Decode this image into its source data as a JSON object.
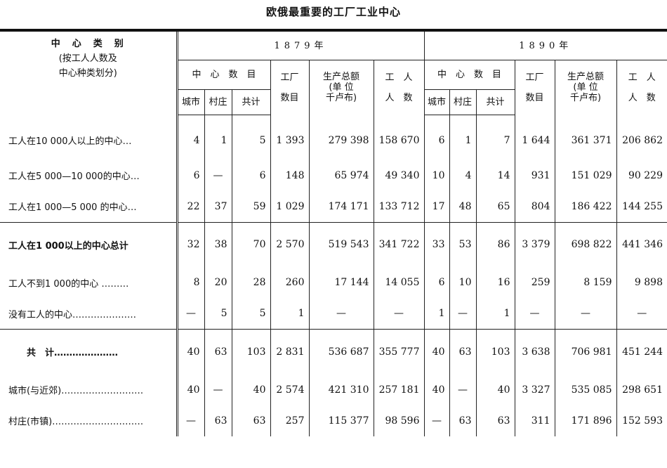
{
  "title": "欧俄最重要的工厂工业中心",
  "header": {
    "category": [
      "中　心　类　别",
      "(按工人人数及",
      "中心种类划分)"
    ],
    "years": [
      "1879年",
      "1890年"
    ],
    "groups": {
      "centers": "中　心　数　目",
      "factories": [
        "工厂",
        "数目"
      ],
      "output": [
        "生产总额",
        "(单 位",
        "千卢布)"
      ],
      "workers": [
        "工　人",
        "人　数"
      ]
    },
    "sub": [
      "城市",
      "村庄",
      "共计"
    ]
  },
  "rows": [
    {
      "label": "工人在10 000人以上的中心…",
      "bold": false,
      "y1879": [
        "4",
        "1",
        "5",
        "1 393",
        "279 398",
        "158 670"
      ],
      "y1890": [
        "6",
        "1",
        "7",
        "1 644",
        "361 371",
        "206 862"
      ]
    },
    {
      "label": "工人在5 000—10 000的中心…",
      "bold": false,
      "y1879": [
        "6",
        "—",
        "6",
        "148",
        "65 974",
        "49 340"
      ],
      "y1890": [
        "10",
        "4",
        "14",
        "931",
        "151 029",
        "90 229"
      ]
    },
    {
      "label": "工人在1 000—5 000 的中心…",
      "bold": false,
      "y1879": [
        "22",
        "37",
        "59",
        "1 029",
        "174 171",
        "133 712"
      ],
      "y1890": [
        "17",
        "48",
        "65",
        "804",
        "186 422",
        "144 255"
      ]
    },
    {
      "label": "工人在1 000以上的中心总计",
      "bold": true,
      "y1879": [
        "32",
        "38",
        "70",
        "2 570",
        "519 543",
        "341 722"
      ],
      "y1890": [
        "33",
        "53",
        "86",
        "3 379",
        "698 822",
        "441 346"
      ]
    },
    {
      "label": "工人不到1 000的中心 ………",
      "bold": false,
      "y1879": [
        "8",
        "20",
        "28",
        "260",
        "17 144",
        "14 055"
      ],
      "y1890": [
        "6",
        "10",
        "16",
        "259",
        "8 159",
        "9 898"
      ]
    },
    {
      "label": "没有工人的中心…………………",
      "bold": false,
      "y1879": [
        "—",
        "5",
        "5",
        "1",
        "—",
        "—"
      ],
      "y1890": [
        "1",
        "—",
        "1",
        "—",
        "—",
        "—"
      ]
    },
    {
      "label": "　　共　计…………………",
      "bold": true,
      "y1879": [
        "40",
        "63",
        "103",
        "2 831",
        "536 687",
        "355 777"
      ],
      "y1890": [
        "40",
        "63",
        "103",
        "3 638",
        "706 981",
        "451 244"
      ]
    },
    {
      "label": "城市(与近郊)………………………",
      "bold": false,
      "y1879": [
        "40",
        "—",
        "40",
        "2 574",
        "421 310",
        "257 181"
      ],
      "y1890": [
        "40",
        "—",
        "40",
        "3 327",
        "535 085",
        "298 651"
      ]
    },
    {
      "label": "村庄(市镇)…………………………",
      "bold": false,
      "y1879": [
        "—",
        "63",
        "63",
        "257",
        "115 377",
        "98 596"
      ],
      "y1890": [
        "—",
        "63",
        "63",
        "311",
        "171 896",
        "152 593"
      ]
    }
  ]
}
